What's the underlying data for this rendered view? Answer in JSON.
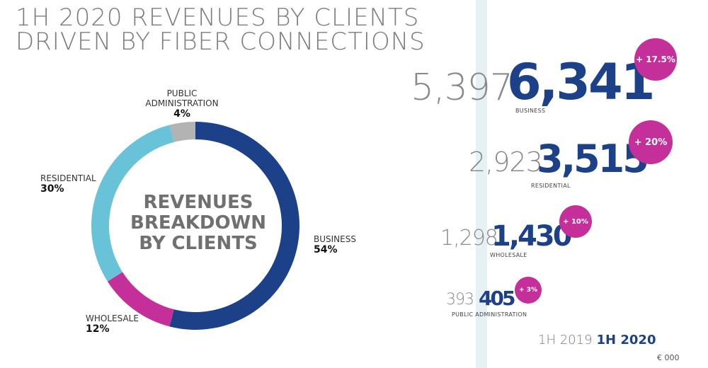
{
  "title": {
    "line1": "1H 2020 REVENUES BY CLIENTS",
    "line2": "DRIVEN BY FIBER CONNECTIONS"
  },
  "colors": {
    "business": "#1c4189",
    "residential": "#68c3d9",
    "wholesale": "#c52f9a",
    "public_administration": "#b3b3b3",
    "badge": "#c52f9a",
    "gray_text": "#7c7c7c"
  },
  "donut": {
    "center_line1": "REVENUES",
    "center_line2": "BREAKDOWN",
    "center_line3": "BY CLIENTS"
  },
  "chart_data": [
    {
      "type": "pie",
      "variant": "donut",
      "categories": [
        "BUSINESS",
        "WHOLESALE",
        "RESIDENTIAL",
        "PUBLIC ADMINISTRATION"
      ],
      "values": [
        54,
        12,
        30,
        4
      ],
      "value_labels": [
        "54%",
        "12%",
        "30%",
        "4%"
      ],
      "label_lines": [
        [
          "BUSINESS"
        ],
        [
          "WHOLESALE"
        ],
        [
          "RESIDENTIAL"
        ],
        [
          "PUBLIC",
          "ADMINISTRATION"
        ]
      ]
    },
    {
      "type": "bar",
      "categories": [
        "BUSINESS",
        "RESIDENTIAL",
        "WHOLESALE",
        "PUBLIC ADMINISTRATION"
      ],
      "series": [
        {
          "name": "1H 2019",
          "values": [
            5397,
            2923,
            1298,
            393
          ],
          "labels": [
            "5,397",
            "2,923",
            "1,298",
            "393"
          ]
        },
        {
          "name": "1H 2020",
          "values": [
            6341,
            3515,
            1430,
            405
          ],
          "labels": [
            "6,341",
            "3,515",
            "1,430",
            "405"
          ]
        }
      ],
      "growth": [
        "+ 17.5%",
        "+ 20%",
        "+ 10%",
        "+ 3%"
      ],
      "unit": "€ 000"
    }
  ]
}
